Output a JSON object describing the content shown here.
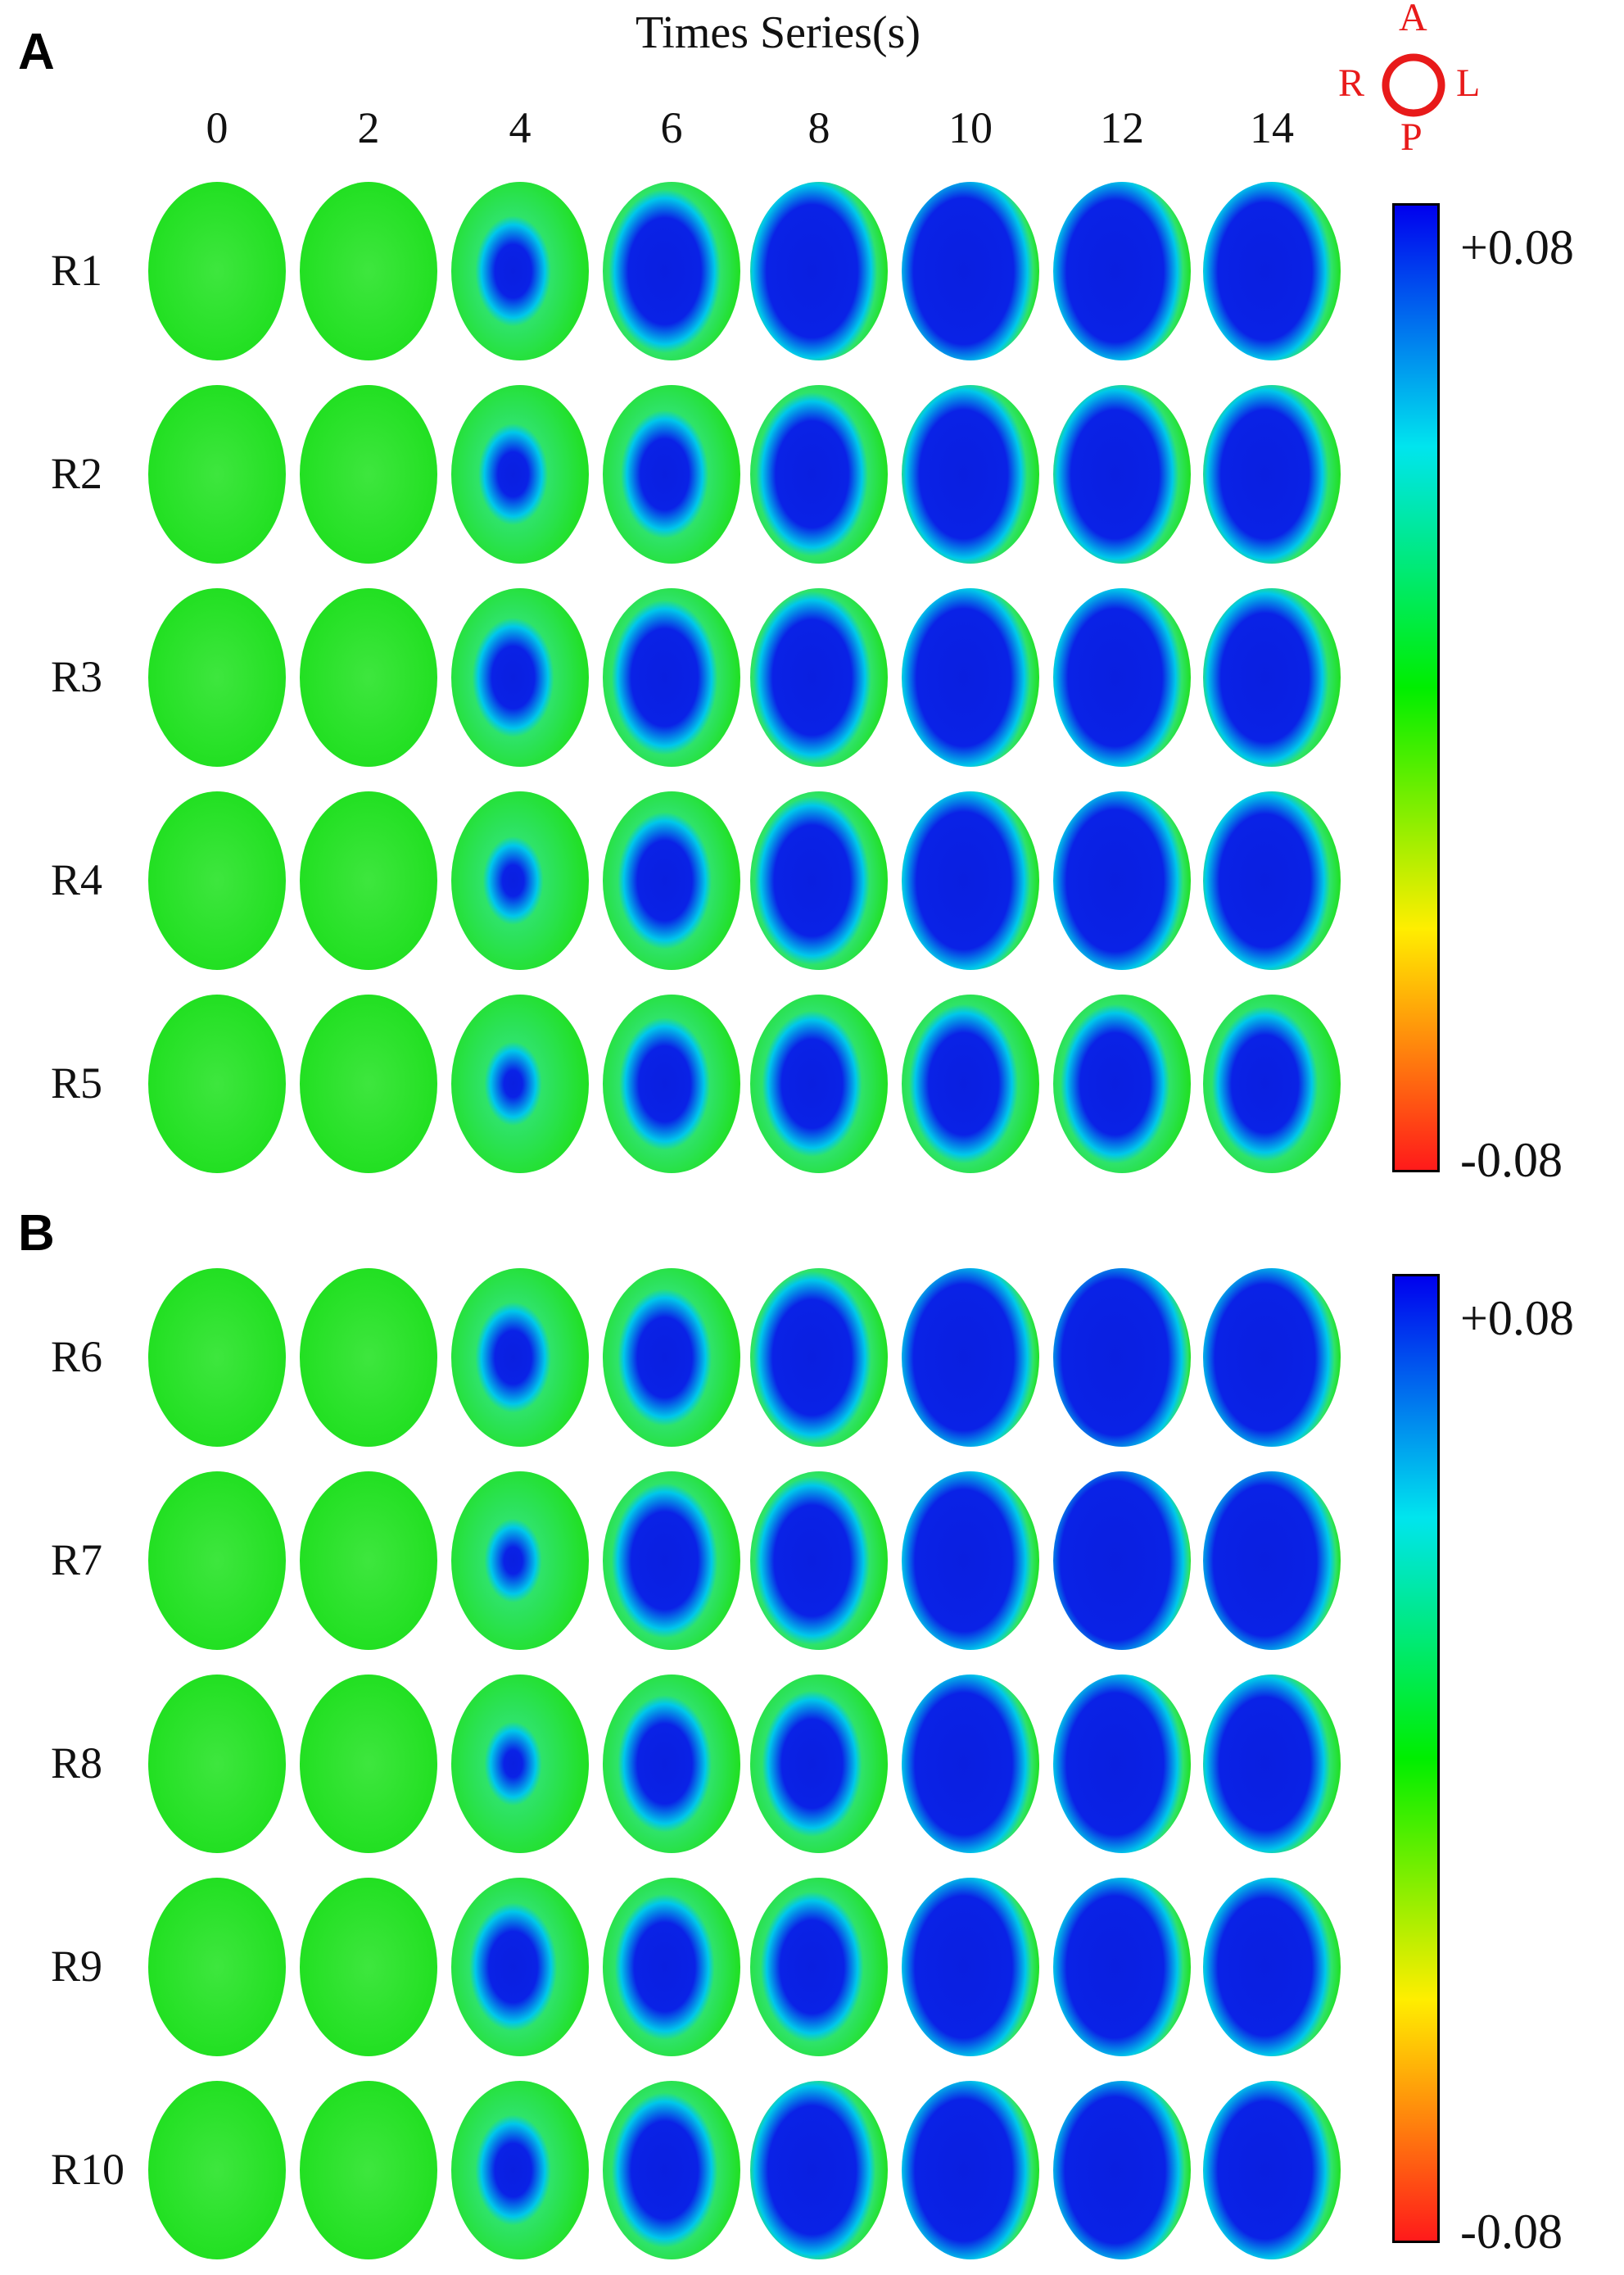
{
  "chart_data": {
    "type": "heatmap",
    "title": "",
    "xlabel": "Times Series(s)",
    "x": [
      "0",
      "2",
      "4",
      "6",
      "8",
      "10",
      "12",
      "14"
    ],
    "orientation": {
      "anterior": "A",
      "posterior": "P",
      "right": "R",
      "left": "L"
    },
    "colorscale": {
      "max_label": "+0.08",
      "min_label": "-0.08",
      "max": 0.08,
      "min": -0.08,
      "colors": [
        "#ff1a1a",
        "#ffee00",
        "#00ee00",
        "#00e5ee",
        "#0000ee"
      ]
    },
    "panels": [
      {
        "letter": "A",
        "rows": [
          {
            "label": "R1",
            "activation": [
              0.0,
              0.05,
              0.3,
              0.6,
              0.75,
              0.82,
              0.8,
              0.78
            ]
          },
          {
            "label": "R2",
            "activation": [
              0.0,
              0.05,
              0.25,
              0.4,
              0.6,
              0.72,
              0.72,
              0.72
            ]
          },
          {
            "label": "R3",
            "activation": [
              0.0,
              0.05,
              0.35,
              0.55,
              0.65,
              0.78,
              0.78,
              0.72
            ]
          },
          {
            "label": "R4",
            "activation": [
              0.0,
              0.05,
              0.18,
              0.45,
              0.62,
              0.78,
              0.8,
              0.75
            ]
          },
          {
            "label": "R5",
            "activation": [
              0.0,
              0.05,
              0.15,
              0.42,
              0.5,
              0.58,
              0.58,
              0.55
            ]
          }
        ]
      },
      {
        "letter": "B",
        "rows": [
          {
            "label": "R6",
            "activation": [
              0.0,
              0.05,
              0.3,
              0.45,
              0.65,
              0.82,
              0.88,
              0.82
            ]
          },
          {
            "label": "R7",
            "activation": [
              0.0,
              0.05,
              0.15,
              0.55,
              0.62,
              0.8,
              0.9,
              0.85
            ]
          },
          {
            "label": "R8",
            "activation": [
              0.0,
              0.06,
              0.15,
              0.45,
              0.5,
              0.8,
              0.8,
              0.75
            ]
          },
          {
            "label": "R9",
            "activation": [
              0.0,
              0.05,
              0.4,
              0.5,
              0.52,
              0.8,
              0.8,
              0.78
            ]
          },
          {
            "label": "R10",
            "activation": [
              0.0,
              0.05,
              0.3,
              0.55,
              0.72,
              0.8,
              0.82,
              0.78
            ]
          }
        ]
      }
    ]
  }
}
